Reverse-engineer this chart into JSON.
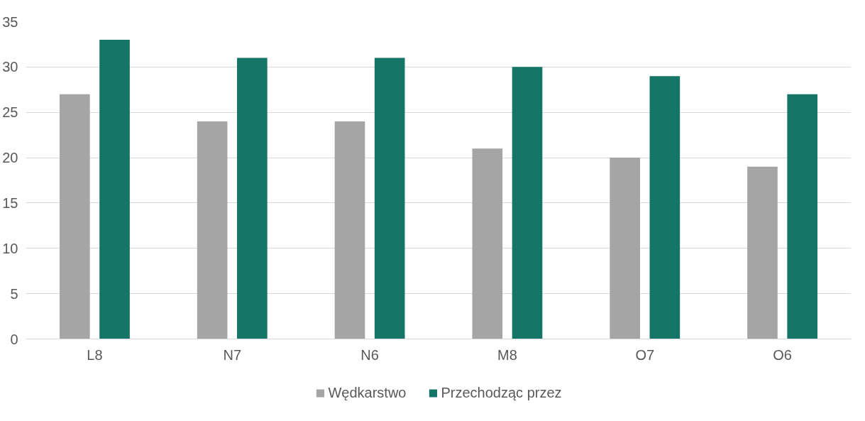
{
  "chart_data": {
    "type": "bar",
    "categories": [
      "L8",
      "N7",
      "N6",
      "M8",
      "O7",
      "O6"
    ],
    "series": [
      {
        "name": "Wędkarstwo",
        "color": "#a5a5a5",
        "values": [
          27,
          24,
          24,
          21,
          20,
          19
        ]
      },
      {
        "name": "Przechodząc przez",
        "color": "#157567",
        "values": [
          33,
          31,
          31,
          30,
          29,
          27
        ]
      }
    ],
    "ylim": [
      0,
      35
    ],
    "yticks": [
      0,
      5,
      10,
      15,
      20,
      25,
      30,
      35
    ],
    "grid": "y",
    "legend": "bottom"
  }
}
